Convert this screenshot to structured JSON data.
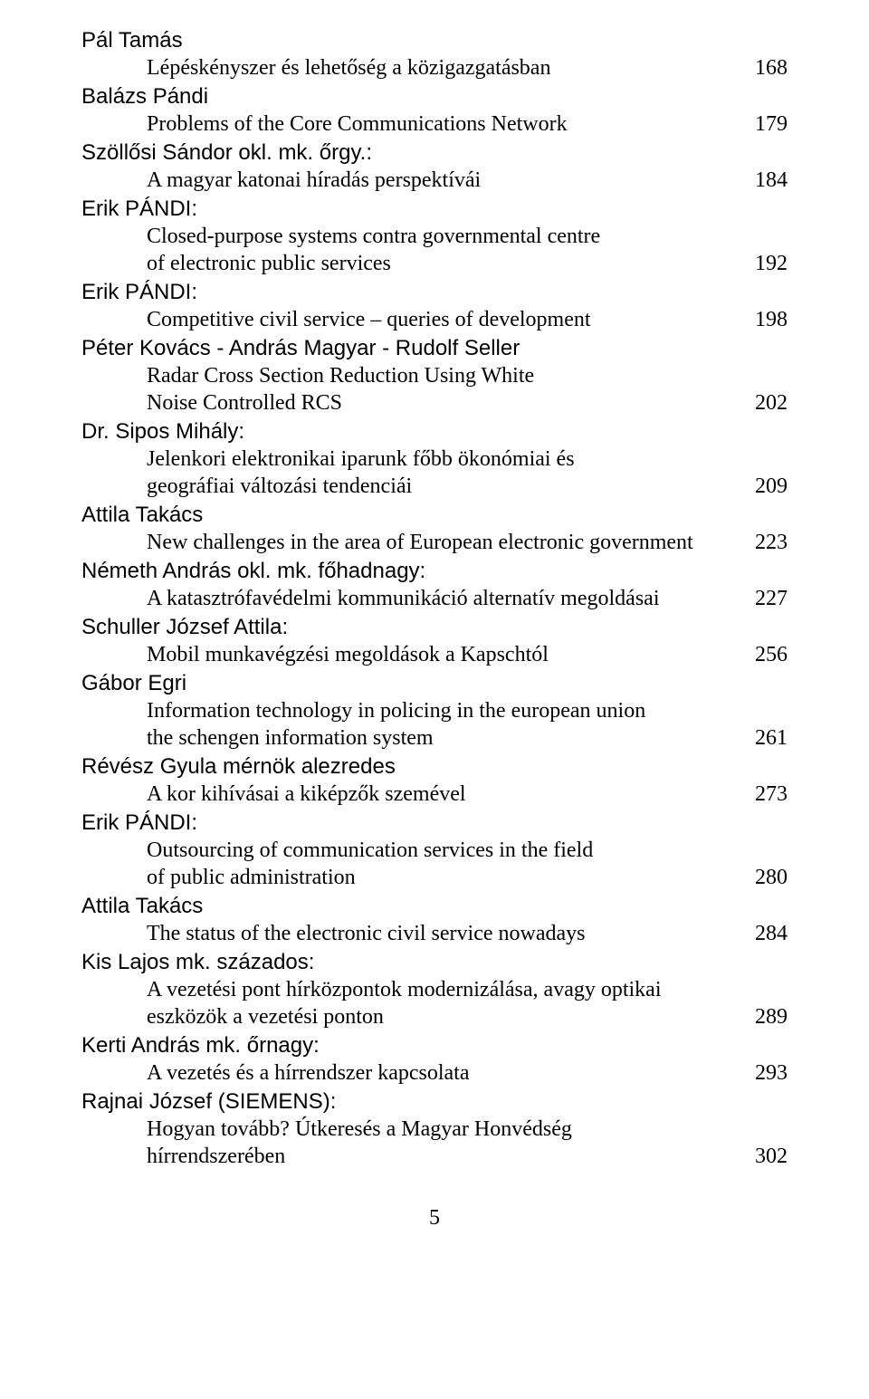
{
  "entries": [
    {
      "author": "Pál Tamás",
      "lines": [
        "Lépéskényszer és lehetőség a közigazgatásban"
      ],
      "page": "168"
    },
    {
      "author": "Balázs Pándi",
      "lines": [
        "Problems of the Core Communications Network"
      ],
      "page": "179"
    },
    {
      "author": "Szöllősi Sándor okl. mk. őrgy.:",
      "lines": [
        "A magyar katonai híradás perspektívái"
      ],
      "page": "184"
    },
    {
      "author": "Erik PÁNDI:",
      "lines": [
        "Closed-purpose systems contra governmental centre",
        "of electronic public services"
      ],
      "page": "192"
    },
    {
      "author": "Erik PÁNDI:",
      "lines": [
        "Competitive civil service – queries of development"
      ],
      "page": "198"
    },
    {
      "author": "Péter Kovács - András Magyar - Rudolf Seller",
      "lines": [
        "Radar Cross Section Reduction Using White",
        "Noise Controlled RCS"
      ],
      "page": "202"
    },
    {
      "author": "Dr. Sipos Mihály:",
      "lines": [
        "Jelenkori elektronikai iparunk főbb ökonómiai és",
        "geográfiai változási tendenciái"
      ],
      "page": "209"
    },
    {
      "author": "Attila Takács",
      "lines": [
        "New challenges in the area of European electronic government"
      ],
      "page": "223"
    },
    {
      "author": "Németh András okl. mk. főhadnagy:",
      "lines": [
        "A katasztrófavédelmi kommunikáció alternatív megoldásai"
      ],
      "page": "227"
    },
    {
      "author": "Schuller József Attila:",
      "lines": [
        "Mobil munkavégzési megoldások a Kapschtól"
      ],
      "page": "256"
    },
    {
      "author": "Gábor Egri",
      "lines": [
        "Information technology in policing in the european union",
        "the schengen information system"
      ],
      "page": "261"
    },
    {
      "author": "Révész Gyula mérnök alezredes",
      "lines": [
        "A kor kihívásai a kiképzők szemével"
      ],
      "page": "273"
    },
    {
      "author": "Erik PÁNDI:",
      "lines": [
        "Outsourcing of communication services in the field",
        "of public administration"
      ],
      "page": "280"
    },
    {
      "author": "Attila Takács",
      "lines": [
        "The status of the electronic civil service nowadays"
      ],
      "page": "284"
    },
    {
      "author": "Kis Lajos mk. százados:",
      "lines": [
        "A vezetési pont hírközpontok modernizálása, avagy optikai",
        "eszközök a vezetési ponton"
      ],
      "page": "289"
    },
    {
      "author": "Kerti András mk. őrnagy:",
      "lines": [
        "A vezetés és a hírrendszer kapcsolata"
      ],
      "page": "293"
    },
    {
      "author": "Rajnai József (SIEMENS):",
      "lines": [
        "Hogyan tovább? Útkeresés a Magyar Honvédség",
        "hírrendszerében"
      ],
      "page": "302"
    }
  ],
  "footer": "5"
}
